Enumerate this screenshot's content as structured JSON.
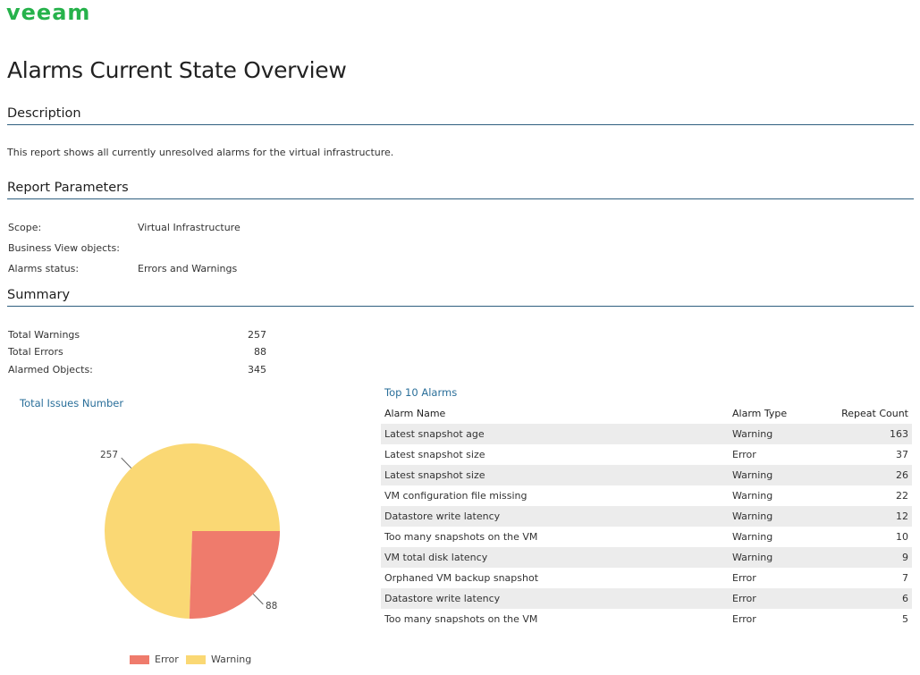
{
  "header": {
    "logo_text": "veeam",
    "title": "Alarms Current State Overview"
  },
  "sections": {
    "description": "Description",
    "parameters": "Report Parameters",
    "summary": "Summary"
  },
  "description_text": "This report shows all currently unresolved alarms for the virtual infrastructure.",
  "parameters": [
    {
      "label": "Scope:",
      "value": "Virtual Infrastructure"
    },
    {
      "label": "Business View objects:",
      "value": ""
    },
    {
      "label": "Alarms status:",
      "value": "Errors and Warnings"
    }
  ],
  "summary": [
    {
      "label": "Total Warnings",
      "value": "257"
    },
    {
      "label": "Total Errors",
      "value": "88"
    },
    {
      "label": "Alarmed Objects:",
      "value": "345"
    }
  ],
  "colors": {
    "brand": "#26b24b",
    "error": "#ef7b6c",
    "warning": "#fad874",
    "rule": "#2f5f7f",
    "link": "#2a6f9a"
  },
  "chart_data": {
    "type": "pie",
    "title": "Total Issues Number",
    "categories": [
      "Error",
      "Warning"
    ],
    "values": [
      88,
      257
    ],
    "legend": "bottom"
  },
  "top_alarms": {
    "title": "Top 10 Alarms",
    "columns": [
      "Alarm Name",
      "Alarm Type",
      "Repeat Count"
    ],
    "rows": [
      [
        "Latest snapshot age",
        "Warning",
        "163"
      ],
      [
        "Latest snapshot size",
        "Error",
        "37"
      ],
      [
        "Latest snapshot size",
        "Warning",
        "26"
      ],
      [
        "VM configuration file missing",
        "Warning",
        "22"
      ],
      [
        "Datastore write latency",
        "Warning",
        "12"
      ],
      [
        "Too many snapshots on the VM",
        "Warning",
        "10"
      ],
      [
        "VM total disk latency",
        "Warning",
        "9"
      ],
      [
        "Orphaned VM backup snapshot",
        "Error",
        "7"
      ],
      [
        "Datastore write latency",
        "Error",
        "6"
      ],
      [
        "Too many snapshots on the VM",
        "Error",
        "5"
      ]
    ]
  }
}
